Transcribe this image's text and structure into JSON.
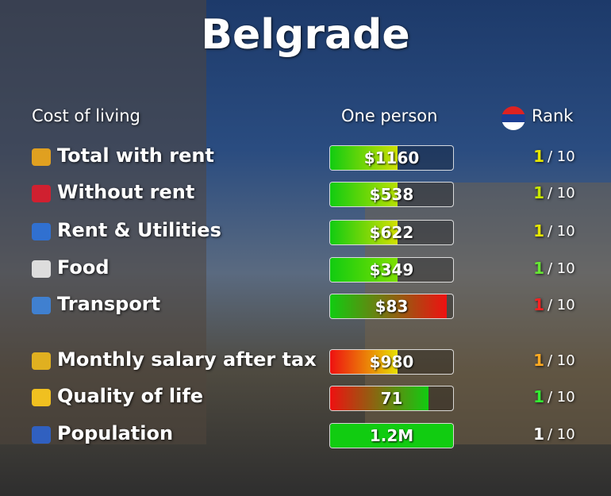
{
  "header": {
    "title": "Belgrade",
    "section": "Cost of living",
    "column": "One person",
    "rank_column": "Rank"
  },
  "rank_suffix": "/ 10",
  "rows": [
    {
      "label": "Total with rent",
      "value": "$1160",
      "fill": 55,
      "colors": [
        "#11cc11",
        "#cfe000"
      ],
      "rank": "1",
      "rank_color": "#e6e600"
    },
    {
      "label": "Without rent",
      "value": "$538",
      "fill": 55,
      "colors": [
        "#11cc11",
        "#b8e000"
      ],
      "rank": "1",
      "rank_color": "#c8e600"
    },
    {
      "label": "Rent & Utilities",
      "value": "$622",
      "fill": 55,
      "colors": [
        "#11cc11",
        "#d4e000"
      ],
      "rank": "1",
      "rank_color": "#e6e600"
    },
    {
      "label": "Food",
      "value": "$349",
      "fill": 55,
      "colors": [
        "#11cc11",
        "#7ee000"
      ],
      "rank": "1",
      "rank_color": "#66e633"
    },
    {
      "label": "Transport",
      "value": "$83",
      "fill": 95,
      "colors": [
        "#11cc11",
        "#ee1111"
      ],
      "rank": "1",
      "rank_color": "#ff2222"
    },
    {
      "label": "Monthly salary after tax",
      "value": "$980",
      "fill": 55,
      "colors": [
        "#ee1111",
        "#e8e000"
      ],
      "rank": "1",
      "rank_color": "#ffaa22"
    },
    {
      "label": "Quality of life",
      "value": "71",
      "fill": 80,
      "colors": [
        "#ee1111",
        "#11cc11"
      ],
      "rank": "1",
      "rank_color": "#33ee33"
    },
    {
      "label": "Population",
      "value": "1.2M",
      "fill": 100,
      "colors": [
        "#11cc11",
        "#11cc11"
      ],
      "rank": "1",
      "rank_color": "#ffffff"
    }
  ]
}
